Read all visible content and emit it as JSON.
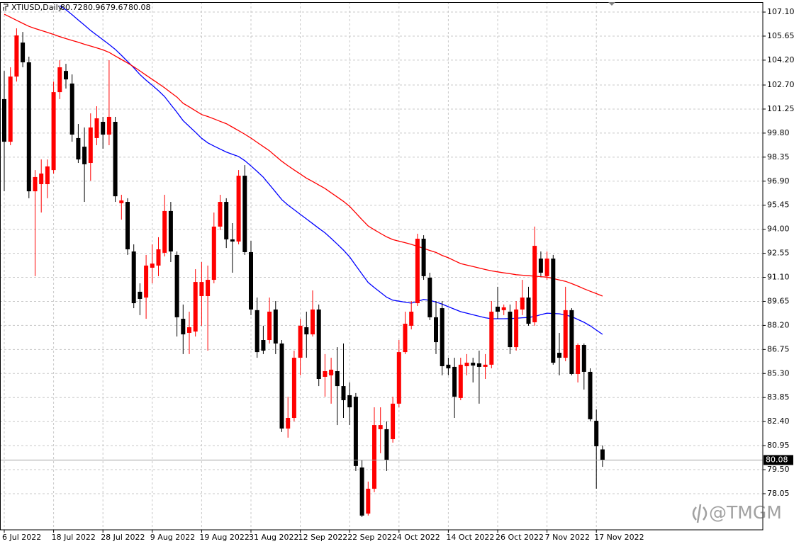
{
  "chart_data": {
    "type": "candlestick",
    "symbol_label": "XTIUSD,Daily",
    "watermark": "@TMGM",
    "categories": [
      "6 Jul 2022",
      null,
      null,
      null,
      null,
      null,
      null,
      null,
      "18 Jul 2022",
      null,
      null,
      null,
      null,
      null,
      null,
      null,
      "28 Jul 2022",
      null,
      null,
      null,
      null,
      null,
      null,
      null,
      "9 Aug 2022",
      null,
      null,
      null,
      null,
      null,
      null,
      null,
      "19 Aug 2022",
      null,
      null,
      null,
      null,
      null,
      null,
      null,
      "31 Aug 2022",
      null,
      null,
      null,
      null,
      null,
      null,
      null,
      "12 Sep 2022",
      null,
      null,
      null,
      null,
      null,
      null,
      null,
      "22 Sep 2022",
      null,
      null,
      null,
      null,
      null,
      null,
      null,
      "4 Oct 2022",
      null,
      null,
      null,
      null,
      null,
      null,
      null,
      "14 Oct 2022",
      null,
      null,
      null,
      null,
      null,
      null,
      null,
      "26 Oct 2022",
      null,
      null,
      null,
      null,
      null,
      null,
      null,
      "7 Nov 2022",
      null,
      null,
      null,
      null,
      null,
      null,
      null,
      "17 Nov 2022",
      null
    ],
    "open": [
      101.85,
      99.28,
      103.21,
      105.26,
      104.07,
      96.29,
      96.72,
      96.72,
      97.57,
      102.27,
      103.55,
      102.79,
      99.5,
      98.98,
      98.0,
      99.5,
      100.48,
      99.71,
      100.48,
      95.57,
      95.65,
      92.66,
      90.23,
      89.88,
      91.68,
      91.81,
      92.58,
      95.1,
      92.45,
      88.6,
      87.75,
      87.83,
      89.97,
      89.97,
      90.95,
      94.16,
      95.65,
      93.39,
      93.26,
      97.23,
      92.62,
      89.12,
      87.32,
      87.32,
      89.16,
      87.11,
      81.98,
      82.62,
      86.25,
      88.09,
      87.66,
      89.16,
      85.1,
      85.19,
      85.44,
      84.54,
      83.99,
      83.9,
      79.63,
      76.85,
      78.35,
      81.94,
      81.94,
      81.34,
      83.48,
      86.59,
      88.18,
      89.54,
      93.43,
      91.08,
      88.69,
      89.24,
      85.83,
      85.7,
      83.82,
      85.74,
      85.95,
      85.91,
      85.7,
      85.83,
      89.33,
      89.12,
      89.03,
      86.89,
      89.16,
      89.88,
      88.39,
      92.23,
      91.17,
      92.23,
      86.55,
      86.25,
      89.12,
      85.27,
      87.02,
      85.4,
      82.45,
      80.72
    ],
    "high": [
      103.55,
      103.77,
      106.12,
      105.9,
      104.41,
      97.57,
      98.21,
      98.21,
      102.91,
      104.2,
      103.98,
      103.34,
      100.35,
      100.14,
      100.99,
      101.42,
      100.78,
      104.2,
      100.78,
      96.08,
      95.87,
      93.09,
      90.74,
      92.45,
      93.09,
      93.52,
      96.08,
      95.65,
      92.66,
      89.46,
      89.03,
      91.59,
      92.02,
      91.81,
      95.01,
      96.08,
      95.87,
      94.37,
      97.57,
      97.87,
      93.3,
      89.88,
      88.18,
      89.88,
      89.67,
      87.32,
      83.9,
      86.68,
      88.6,
      89.03,
      90.31,
      89.46,
      86.47,
      86.25,
      86.89,
      87.11,
      84.76,
      84.12,
      80.06,
      78.78,
      83.26,
      83.26,
      82.41,
      83.9,
      87.32,
      89.03,
      89.67,
      93.73,
      93.64,
      91.38,
      89.67,
      89.67,
      86.25,
      86.25,
      86.25,
      86.47,
      86.25,
      86.68,
      86.47,
      89.67,
      90.53,
      89.46,
      89.46,
      89.67,
      90.95,
      90.53,
      94.16,
      92.66,
      92.66,
      92.45,
      87.75,
      90.53,
      89.24,
      87.11,
      87.11,
      85.61,
      83.13,
      80.96
    ],
    "low": [
      96.29,
      99.07,
      102.91,
      103.77,
      95.87,
      91.17,
      95.01,
      95.87,
      97.36,
      101.85,
      102.49,
      99.28,
      98.0,
      95.65,
      96.93,
      99.07,
      98.86,
      99.07,
      95.65,
      94.58,
      92.45,
      89.24,
      88.82,
      88.6,
      90.74,
      91.17,
      92.36,
      92.02,
      87.53,
      86.47,
      86.47,
      87.53,
      88.18,
      86.68,
      90.74,
      93.94,
      92.87,
      91.38,
      93.09,
      92.45,
      88.82,
      86.25,
      86.47,
      87.11,
      86.47,
      81.77,
      81.43,
      82.41,
      85.19,
      86.25,
      87.53,
      84.54,
      83.9,
      83.48,
      82.19,
      82.62,
      82.19,
      79.42,
      76.64,
      76.73,
      78.14,
      80.49,
      79.42,
      81.13,
      83.26,
      86.47,
      87.96,
      89.37,
      90.95,
      88.52,
      86.47,
      85.19,
      85.19,
      82.62,
      83.69,
      85.19,
      84.76,
      83.48,
      84.97,
      85.61,
      88.6,
      88.82,
      86.47,
      86.68,
      88.82,
      88.18,
      88.18,
      91.17,
      90.95,
      85.83,
      85.19,
      86.04,
      85.19,
      84.76,
      84.33,
      82.41,
      78.35,
      79.67
    ],
    "close": [
      99.28,
      103.21,
      105.69,
      104.07,
      96.29,
      97.15,
      97.36,
      97.79,
      102.27,
      103.77,
      103.04,
      99.71,
      98.21,
      97.92,
      100.14,
      100.69,
      99.71,
      100.78,
      95.99,
      95.74,
      92.79,
      89.54,
      89.8,
      91.81,
      91.93,
      92.79,
      95.1,
      92.66,
      88.69,
      87.66,
      88.09,
      90.82,
      90.82,
      90.95,
      94.16,
      95.65,
      93.39,
      93.26,
      97.23,
      92.62,
      89.16,
      86.59,
      86.68,
      89.03,
      87.11,
      81.98,
      82.62,
      86.25,
      88.18,
      87.66,
      89.16,
      84.97,
      85.44,
      85.53,
      84.54,
      83.69,
      83.26,
      79.72,
      76.73,
      78.35,
      82.19,
      82.19,
      80.06,
      83.48,
      86.59,
      88.3,
      89.03,
      93.43,
      91.17,
      88.69,
      87.19,
      85.74,
      85.61,
      83.9,
      85.83,
      85.95,
      85.78,
      85.7,
      85.83,
      89.03,
      89.03,
      89.29,
      86.89,
      89.16,
      89.88,
      88.3,
      93.0,
      91.38,
      92.23,
      85.95,
      86.25,
      89.12,
      85.27,
      87.02,
      85.4,
      82.54,
      80.91,
      80.08
    ],
    "up_color": "#ff0000",
    "down_color": "#000000",
    "overlays": [
      {
        "color": "#0000ff",
        "values": [
          null,
          null,
          null,
          null,
          null,
          null,
          null,
          null,
          null,
          107.48,
          107.24,
          106.94,
          106.62,
          106.31,
          105.99,
          105.71,
          105.43,
          105.15,
          104.85,
          104.49,
          104.12,
          103.74,
          103.33,
          102.99,
          102.68,
          102.36,
          102.0,
          101.52,
          101.05,
          100.55,
          100.2,
          99.85,
          99.49,
          99.21,
          99.02,
          98.84,
          98.66,
          98.52,
          98.39,
          98.14,
          97.82,
          97.49,
          97.14,
          96.69,
          96.24,
          95.79,
          95.46,
          95.18,
          94.9,
          94.62,
          94.34,
          94.06,
          93.79,
          93.45,
          93.1,
          92.74,
          92.33,
          91.81,
          91.3,
          90.79,
          90.48,
          90.19,
          89.9,
          89.72,
          89.66,
          89.6,
          89.54,
          89.65,
          89.77,
          89.71,
          89.61,
          89.48,
          89.33,
          89.18,
          89.03,
          88.94,
          88.84,
          88.75,
          88.66,
          88.6,
          88.6,
          88.6,
          88.61,
          88.63,
          88.66,
          88.68,
          88.74,
          88.85,
          88.94,
          88.92,
          88.9,
          88.83,
          88.73,
          88.56,
          88.39,
          88.18,
          87.92,
          87.66
        ]
      },
      {
        "color": "#ff0000",
        "values": [
          106.97,
          106.79,
          106.6,
          106.42,
          106.24,
          106.11,
          105.99,
          105.87,
          105.75,
          105.62,
          105.5,
          105.39,
          105.28,
          105.16,
          105.05,
          104.94,
          104.82,
          104.67,
          104.45,
          104.24,
          104.03,
          103.8,
          103.55,
          103.29,
          103.04,
          102.79,
          102.53,
          102.25,
          101.97,
          101.6,
          101.38,
          101.15,
          100.92,
          100.8,
          100.66,
          100.51,
          100.37,
          100.16,
          99.95,
          99.73,
          99.5,
          99.24,
          98.99,
          98.73,
          98.41,
          98.1,
          97.83,
          97.58,
          97.33,
          97.08,
          96.88,
          96.67,
          96.46,
          96.2,
          95.94,
          95.68,
          95.38,
          94.98,
          94.58,
          94.2,
          93.97,
          93.75,
          93.54,
          93.38,
          93.28,
          93.19,
          93.09,
          92.97,
          92.85,
          92.72,
          92.6,
          92.42,
          92.28,
          92.1,
          91.93,
          91.84,
          91.75,
          91.66,
          91.57,
          91.49,
          91.43,
          91.37,
          91.32,
          91.26,
          91.23,
          91.2,
          91.17,
          91.14,
          91.11,
          91.03,
          90.94,
          90.86,
          90.72,
          90.57,
          90.41,
          90.26,
          90.12,
          89.97
        ]
      }
    ],
    "ylim": [
      75.87,
      107.7
    ],
    "yticks": [
      {
        "value": 107.1,
        "label": "107.10"
      },
      105.65,
      {
        "value": 104.2,
        "label": "104.20"
      },
      {
        "value": 102.7,
        "label": "102.70"
      },
      101.25,
      {
        "value": 99.8,
        "label": "99.80"
      },
      98.35,
      {
        "value": 96.9,
        "label": "96.90"
      },
      95.45,
      {
        "value": 94,
        "label": "94.00"
      },
      92.55,
      {
        "value": 91.1,
        "label": "91.10"
      },
      89.65,
      {
        "value": 88.2,
        "label": "88.20"
      },
      86.75,
      {
        "value": 85.3,
        "label": "85.30"
      },
      83.85,
      {
        "value": 82.4,
        "label": "82.40"
      },
      80.95,
      {
        "value": 79.5,
        "label": "79.50"
      },
      78.05
    ],
    "grid": true
  }
}
